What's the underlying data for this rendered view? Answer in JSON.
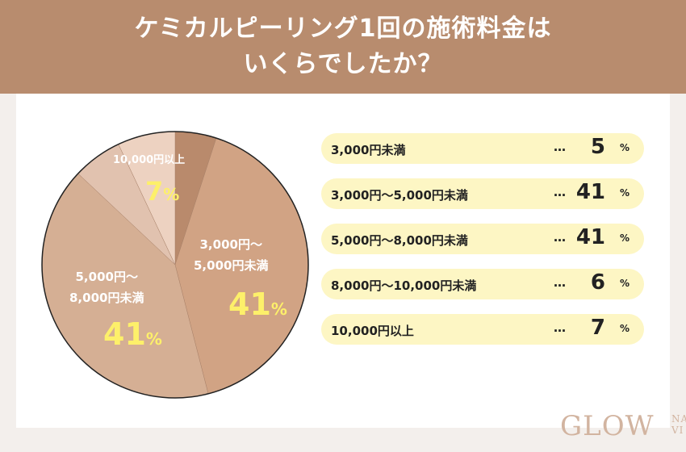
{
  "header": {
    "line1": "ケミカルピーリング1回の施術料金は",
    "line2": "いくらでしたか？"
  },
  "chart_data": {
    "type": "pie",
    "title": "ケミカルピーリング1回の施術料金はいくらでしたか？",
    "categories": [
      "3,000円未満",
      "3,000円〜5,000円未満",
      "5,000円〜8,000円未満",
      "8,000円〜10,000円未満",
      "10,000円以上"
    ],
    "values": [
      5,
      41,
      41,
      6,
      7
    ],
    "unit": "%",
    "colors": [
      "#b98a6c",
      "#d1a384",
      "#d5af94",
      "#e1c2af",
      "#edd2c1"
    ]
  },
  "pie_labels": [
    {
      "name": "3,000円〜",
      "name2": "5,000円未満",
      "value": "41",
      "unit": "%"
    },
    {
      "name": "5,000円〜",
      "name2": "8,000円未満",
      "value": "41",
      "unit": "%"
    },
    {
      "name": "10,000円以上",
      "value": "7",
      "unit": "%"
    }
  ],
  "list": [
    {
      "label": "3,000円未満",
      "dots": "…",
      "value": "5",
      "unit": "%"
    },
    {
      "label": "3,000円〜5,000円未満",
      "dots": "…",
      "value": "41",
      "unit": "%"
    },
    {
      "label": "5,000円〜8,000円未満",
      "dots": "…",
      "value": "41",
      "unit": "%"
    },
    {
      "label": "8,000円〜10,000円未満",
      "dots": "…",
      "value": "6",
      "unit": "%"
    },
    {
      "label": "10,000円以上",
      "dots": "…",
      "value": "7",
      "unit": "%"
    }
  ],
  "logo": {
    "main": "GLOW",
    "sub1": "NA",
    "sub2": "VI"
  }
}
